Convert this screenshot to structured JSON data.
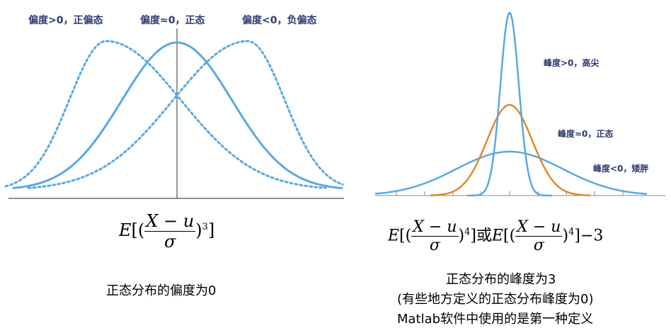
{
  "skewness": {
    "labels": {
      "positive": "偏度>0，正偏态",
      "zero": "偏度≈0，正态",
      "negative": "偏度<0，负偏态"
    },
    "formula": {
      "prefix": "E",
      "num": "X − u",
      "den": "σ",
      "power": "3"
    },
    "caption": "正态分布的偏度为0"
  },
  "kurtosis": {
    "labels": {
      "high": "峰度>0，高尖",
      "normal": "峰度≈0，正态",
      "low": "峰度<0，矮胖"
    },
    "formula": {
      "prefix": "E",
      "num": "X − u",
      "den": "σ",
      "power": "4",
      "or": "或",
      "minus": "−3"
    },
    "captions": {
      "line1": "正态分布的峰度为3",
      "line2": "(有些地方定义的正态分布峰度为0)",
      "line3": "Matlab软件中使用的是第一种定义"
    }
  },
  "colors": {
    "blue": "#5aa9e0",
    "orange": "#e08a2c",
    "axis": "#555555",
    "label": "#2e3a6e"
  }
}
